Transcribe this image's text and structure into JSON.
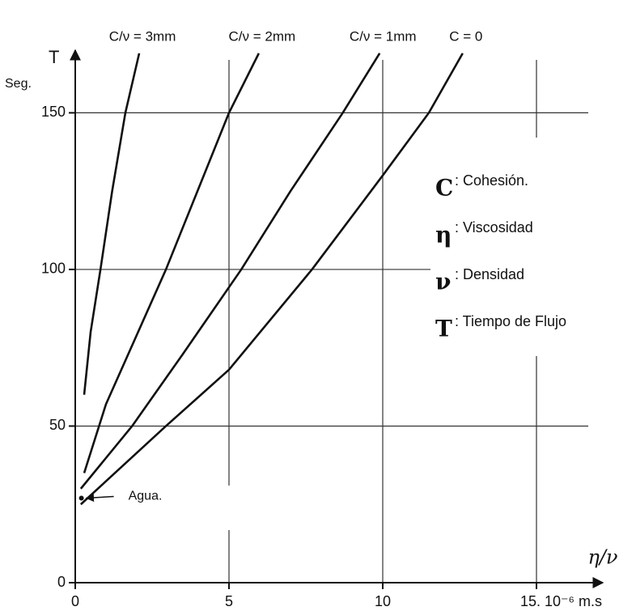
{
  "chart_data": {
    "type": "line",
    "y_label": "T",
    "y_unit": "Seg.",
    "x_label": "η/ν",
    "xlim": [
      0,
      17
    ],
    "ylim": [
      0,
      170
    ],
    "xticks": [
      0,
      5,
      10,
      {
        "value": 15,
        "label": "15. 10⁻⁶ m.s"
      }
    ],
    "yticks": [
      0,
      50,
      100,
      150
    ],
    "grid": true,
    "series": [
      {
        "name": "C/ν = 3mm",
        "color": "#111111",
        "x": [
          0.29,
          0.5,
          0.82,
          1.2,
          1.63,
          2.08
        ],
        "values": [
          60,
          80,
          100,
          125,
          150,
          169
        ]
      },
      {
        "name": "C/ν = 2mm",
        "color": "#111111",
        "x": [
          0.29,
          1.0,
          2.95,
          5.0,
          5.97
        ],
        "values": [
          35,
          57,
          100,
          150,
          169
        ]
      },
      {
        "name": "C/ν = 1mm",
        "color": "#111111",
        "x": [
          0.18,
          1.85,
          3.5,
          5.4,
          7.0,
          8.7,
          9.9
        ],
        "values": [
          30,
          50,
          73,
          100,
          125,
          150,
          169
        ]
      },
      {
        "name": "C = 0",
        "color": "#111111",
        "x": [
          0.18,
          2.95,
          5.0,
          7.7,
          10,
          11.5,
          12.6
        ],
        "values": [
          25,
          50,
          68,
          100,
          130,
          150,
          169
        ]
      }
    ],
    "point": {
      "label": "Agua.",
      "x": 0.2,
      "value": 27
    },
    "legend_notes": [
      {
        "symbol": "C",
        "text": ": Cohesión."
      },
      {
        "symbol": "η",
        "text": ": Viscosidad"
      },
      {
        "symbol": "ν",
        "text": ": Densidad"
      },
      {
        "symbol": "T",
        "text": ": Tiempo de Flujo"
      }
    ]
  }
}
